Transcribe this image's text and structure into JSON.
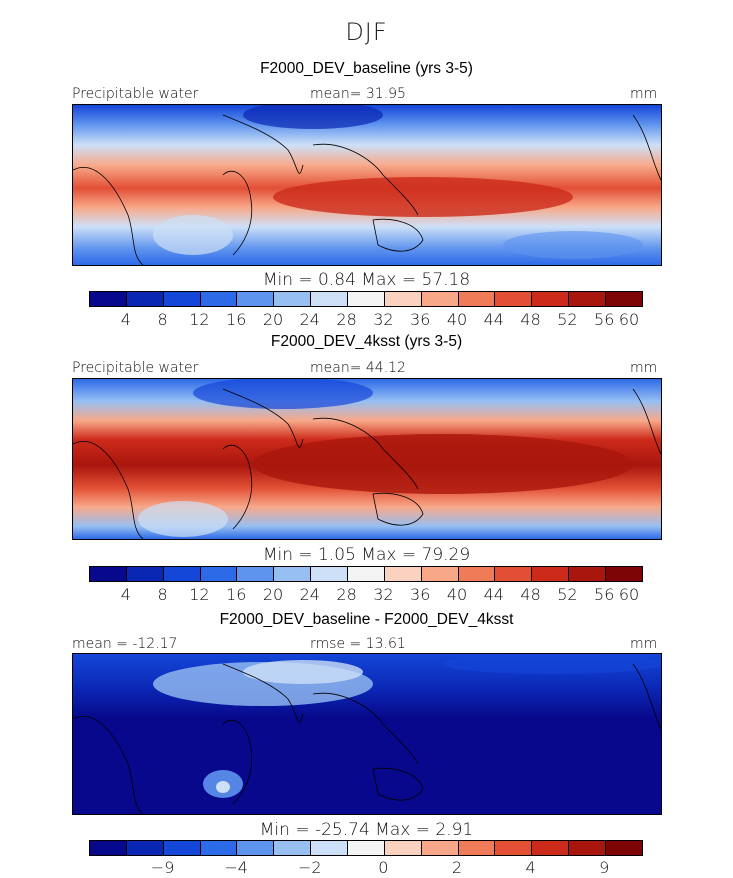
{
  "title": "DJF",
  "colorbar_positive": [
    "#08088c",
    "#0a27b4",
    "#1446d8",
    "#2d6ae8",
    "#5e93ee",
    "#97bff2",
    "#cde0f7",
    "#f4f4f4",
    "#fbd2c0",
    "#f8a889",
    "#ef7b58",
    "#e24f35",
    "#cc2a1a",
    "#a9160d",
    "#7e0505"
  ],
  "colorbar_diff": [
    "#08088c",
    "#0a27b4",
    "#1446d8",
    "#2d6ae8",
    "#5e93ee",
    "#97bff2",
    "#cde0f7",
    "#f4f4f4",
    "#fbd2c0",
    "#f8a889",
    "#ef7b58",
    "#e24f35",
    "#cc2a1a",
    "#a9160d",
    "#7e0505"
  ],
  "panels": [
    {
      "title": "F2000_DEV_baseline (yrs 3-5)",
      "left_label": "Precipitable water",
      "center_label": "mean=   31.95",
      "right_label": "mm",
      "minmax": "Min =    0.84  Max =   57.18",
      "ticks": [
        "4",
        "8",
        "12",
        "16",
        "20",
        "24",
        "28",
        "32",
        "36",
        "40",
        "44",
        "48",
        "52",
        "56",
        "60"
      ]
    },
    {
      "title": "F2000_DEV_4ksst (yrs 3-5)",
      "left_label": "Precipitable water",
      "center_label": "mean=   44.12",
      "right_label": "mm",
      "minmax": "Min =    1.05  Max =   79.29",
      "ticks": [
        "4",
        "8",
        "12",
        "16",
        "20",
        "24",
        "28",
        "32",
        "36",
        "40",
        "44",
        "48",
        "52",
        "56",
        "60"
      ]
    },
    {
      "title": "F2000_DEV_baseline - F2000_DEV_4ksst",
      "left_label": "mean = -12.17",
      "center_label": "rmse =   13.61",
      "right_label": "mm",
      "minmax": "Min = -25.74  Max =    2.91",
      "ticks": [
        "-9",
        "-4",
        "-2",
        "0",
        "2",
        "4",
        "9"
      ]
    }
  ]
}
